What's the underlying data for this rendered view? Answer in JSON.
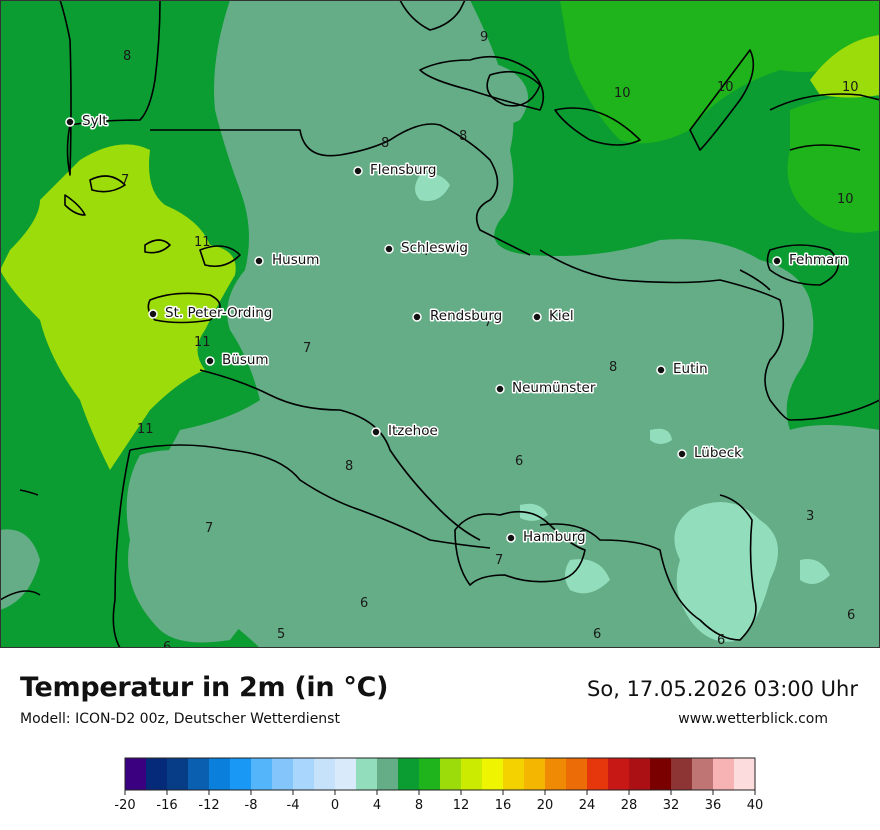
{
  "title": "Temperatur in 2m (in °C)",
  "model": "Modell: ICON-D2 00z, Deutscher Wetterdienst",
  "datetime": "So, 17.05.2026 03:00 Uhr",
  "website": "www.wetterblick.com",
  "cities": [
    {
      "name": "Sylt"
    },
    {
      "name": "Flensburg"
    },
    {
      "name": "Schleswig"
    },
    {
      "name": "Husum"
    },
    {
      "name": "St. Peter-Ording"
    },
    {
      "name": "Rendsburg"
    },
    {
      "name": "Kiel"
    },
    {
      "name": "Fehmarn"
    },
    {
      "name": "Büsum"
    },
    {
      "name": "Neumünster"
    },
    {
      "name": "Eutin"
    },
    {
      "name": "Itzehoe"
    },
    {
      "name": "Lübeck"
    },
    {
      "name": "Hamburg"
    }
  ],
  "contour_labels": [
    "8",
    "9",
    "10",
    "10",
    "10",
    "10",
    "7",
    "8",
    "8",
    "11",
    "11",
    "7",
    "7",
    "11",
    "8",
    "6",
    "8",
    "7",
    "7",
    "3",
    "6",
    "7",
    "6",
    "5",
    "6",
    "6",
    "6",
    "6"
  ],
  "legend": {
    "ticks": [
      "-20",
      "-16",
      "-12",
      "-8",
      "-4",
      "0",
      "4",
      "8",
      "12",
      "16",
      "20",
      "24",
      "28",
      "32",
      "36",
      "40"
    ],
    "min": -20,
    "max": 40,
    "step": 2,
    "colors": [
      "#3a0080",
      "#062a7a",
      "#073d86",
      "#0a5fb0",
      "#0b7fdc",
      "#1a98f5",
      "#55b5fa",
      "#84c6fb",
      "#a8d6fc",
      "#c6e2fb",
      "#d9ebfb",
      "#92ddbc",
      "#64ad86",
      "#0b9d32",
      "#1fb41b",
      "#9ddc0b",
      "#cbeb00",
      "#eff500",
      "#f3d200",
      "#f4b600",
      "#f08a05",
      "#ec6c08",
      "#e5360c",
      "#c81816",
      "#aa1014",
      "#7a0000",
      "#8d3535",
      "#c07575",
      "#f7b3b3",
      "#fcdcdc"
    ]
  }
}
